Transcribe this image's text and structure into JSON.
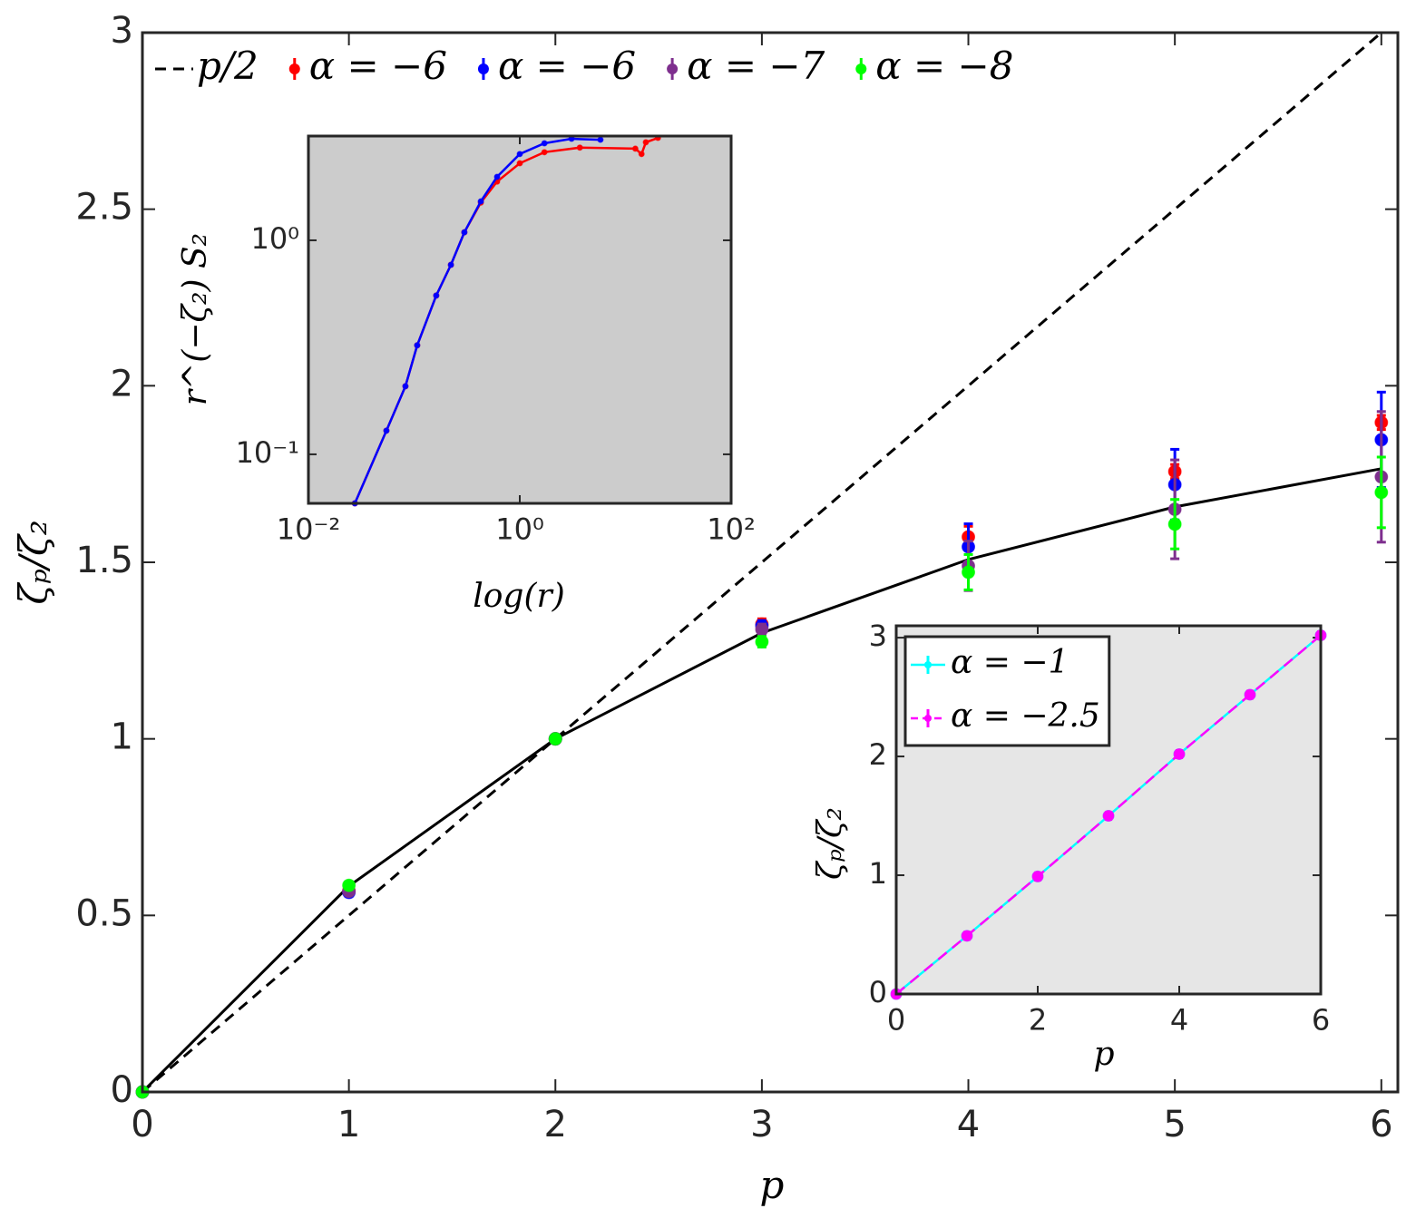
{
  "chart_data": [
    {
      "type": "line",
      "xlabel": "p",
      "ylabel": "ζₚ/ζ₂",
      "x": [
        0,
        1,
        2,
        3,
        4,
        5,
        6
      ],
      "xlim": [
        0,
        6.08
      ],
      "ylim": [
        0,
        3
      ],
      "xticks": [
        0,
        1,
        2,
        3,
        4,
        5,
        6
      ],
      "yticks": [
        0,
        0.5,
        1,
        1.5,
        2,
        2.5,
        3
      ],
      "legend": "top-left",
      "series": [
        {
          "name": "p/2",
          "color": "#000000",
          "line": "dashed",
          "values": [
            0,
            0.5,
            1,
            1.5,
            2,
            2.5,
            3
          ]
        },
        {
          "color": "#000000",
          "line": "solid",
          "values": [
            0,
            0.583,
            1,
            1.3,
            1.508,
            1.657,
            1.765
          ]
        },
        {
          "name": "α = −6",
          "color": "#ff0000",
          "line": "none",
          "marker": true,
          "values": [
            0,
            0.57,
            1,
            1.325,
            1.572,
            1.757,
            1.896
          ],
          "errors": [
            0,
            0.01,
            0.005,
            0.015,
            0.03,
            0.02,
            0.02
          ]
        },
        {
          "name": "α = −6",
          "color": "#0000ff",
          "line": "none",
          "marker": true,
          "values": [
            0,
            0.565,
            1,
            1.32,
            1.544,
            1.72,
            1.847
          ],
          "errors": [
            0,
            0.01,
            0.005,
            0.015,
            0.065,
            0.1,
            0.135
          ]
        },
        {
          "name": "α = −7",
          "color": "#7e2f8e",
          "line": "none",
          "marker": true,
          "values": [
            0,
            0.568,
            1,
            1.31,
            1.49,
            1.65,
            1.742
          ],
          "errors": [
            0,
            0.01,
            0.005,
            0.015,
            0.07,
            0.14,
            0.185
          ]
        },
        {
          "name": "α = −8",
          "color": "#00ff00",
          "line": "none",
          "marker": true,
          "values": [
            0,
            0.585,
            1,
            1.275,
            1.472,
            1.608,
            1.698
          ],
          "errors": [
            0,
            0.01,
            0.005,
            0.015,
            0.05,
            0.07,
            0.1
          ]
        }
      ]
    },
    {
      "type": "line",
      "xlabel": "log(r)",
      "ylabel": "r^(−ζ₂) S₂",
      "xscale": "log",
      "yscale": "log",
      "background": "#cccccc",
      "xlim": [
        0.01,
        100
      ],
      "ylim": [
        0.059,
        3.07
      ],
      "xticks": [
        {
          "value": 0.01,
          "label": "10⁻²"
        },
        {
          "value": 1,
          "label": "10⁰"
        },
        {
          "value": 100,
          "label": "10²"
        }
      ],
      "yticks": [
        {
          "value": 0.1,
          "label": "10⁻¹"
        },
        {
          "value": 1,
          "label": "10⁰"
        }
      ],
      "series": [
        {
          "color": "#ff0000",
          "line": "solid",
          "marker": true,
          "x": [
            0.0275,
            0.0547,
            0.0828,
            0.107,
            0.162,
            0.223,
            0.299,
            0.428,
            0.61,
            1,
            1.71,
            3.7,
            12.4,
            14.2,
            15.6,
            20.3
          ],
          "values": [
            0.059,
            0.129,
            0.208,
            0.323,
            0.552,
            0.768,
            1.09,
            1.5,
            1.88,
            2.29,
            2.58,
            2.71,
            2.68,
            2.53,
            2.87,
            3.01
          ]
        },
        {
          "color": "#0000ff",
          "line": "solid",
          "marker": true,
          "x": [
            0.0275,
            0.0547,
            0.0828,
            0.107,
            0.162,
            0.223,
            0.299,
            0.428,
            0.61,
            1,
            1.71,
            3.09,
            5.8
          ],
          "values": [
            0.059,
            0.129,
            0.208,
            0.323,
            0.552,
            0.768,
            1.09,
            1.52,
            1.98,
            2.53,
            2.84,
            2.98,
            2.95
          ]
        }
      ]
    },
    {
      "type": "line",
      "xlabel": "p",
      "ylabel": "ζₚ/ζ₂",
      "background": "#e6e6e6",
      "x": [
        0,
        1,
        2,
        3,
        4,
        5,
        6
      ],
      "xlim": [
        0,
        6
      ],
      "ylim": [
        0,
        3.1
      ],
      "xticks": [
        0,
        2,
        4,
        6
      ],
      "yticks": [
        0,
        1,
        2,
        3
      ],
      "legend": "top-left",
      "legend_box": true,
      "series": [
        {
          "name": "α = −1",
          "color": "#00ffff",
          "line": "solid",
          "marker": true,
          "values": [
            0,
            0.49,
            0.99,
            1.5,
            2.02,
            2.52,
            3.02
          ],
          "errors": [
            0,
            0.03,
            0.03,
            0.03,
            0.03,
            0.03,
            0.03
          ]
        },
        {
          "name": "α = −2.5",
          "color": "#ff00ff",
          "line": "dashed",
          "marker": true,
          "values": [
            0,
            0.49,
            0.99,
            1.5,
            2.02,
            2.52,
            3.02
          ],
          "errors": [
            0,
            0.03,
            0.03,
            0.03,
            0.03,
            0.03,
            0.03
          ]
        }
      ]
    }
  ]
}
